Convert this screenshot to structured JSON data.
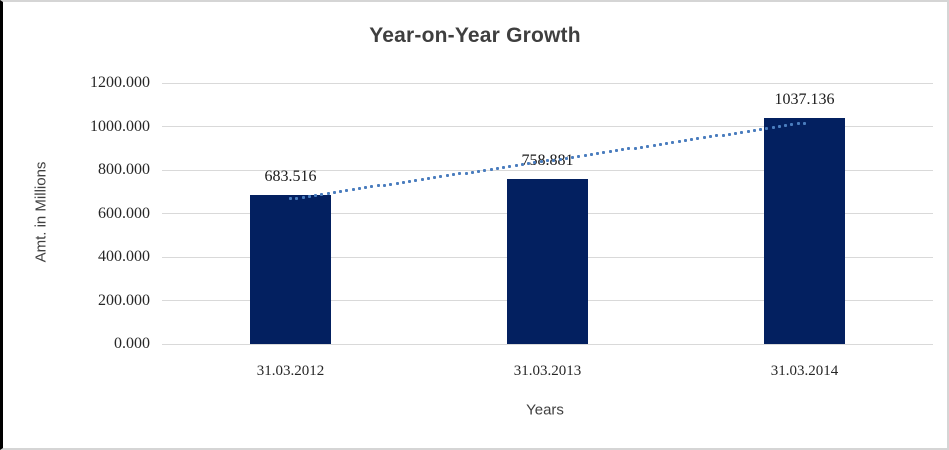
{
  "colors": {
    "bar_fill": "#032060",
    "trendline": "#4a7dbe",
    "gridline": "#d9d9d9",
    "title_text": "#3f3f3f",
    "tick_text": "#262626",
    "axis_title_text": "#404040",
    "frame_border_left": "#000000",
    "frame_border_other": "#d5d5d5"
  },
  "chart_data": {
    "type": "bar",
    "title": "Year-on-Year Growth",
    "xlabel": "Years",
    "ylabel": "Amt. in Millions",
    "categories": [
      "31.03.2012",
      "31.03.2013",
      "31.03.2014"
    ],
    "values": [
      683.516,
      758.881,
      1037.136
    ],
    "data_labels": [
      "683.516",
      "758.881",
      "1037.136"
    ],
    "ylim": [
      0,
      1200
    ],
    "yticks": [
      {
        "value": 0,
        "label": "0.000"
      },
      {
        "value": 200,
        "label": "200.000"
      },
      {
        "value": 400,
        "label": "400.000"
      },
      {
        "value": 600,
        "label": "600.000"
      },
      {
        "value": 800,
        "label": "800.000"
      },
      {
        "value": 1000,
        "label": "1000.000"
      },
      {
        "value": 1200,
        "label": "1200.000"
      }
    ],
    "grid": true,
    "legend": "none",
    "trendline": {
      "style": "dotted",
      "start_category_index": 0,
      "end_category_index": 2,
      "start_value": 667,
      "end_value": 1016
    }
  }
}
